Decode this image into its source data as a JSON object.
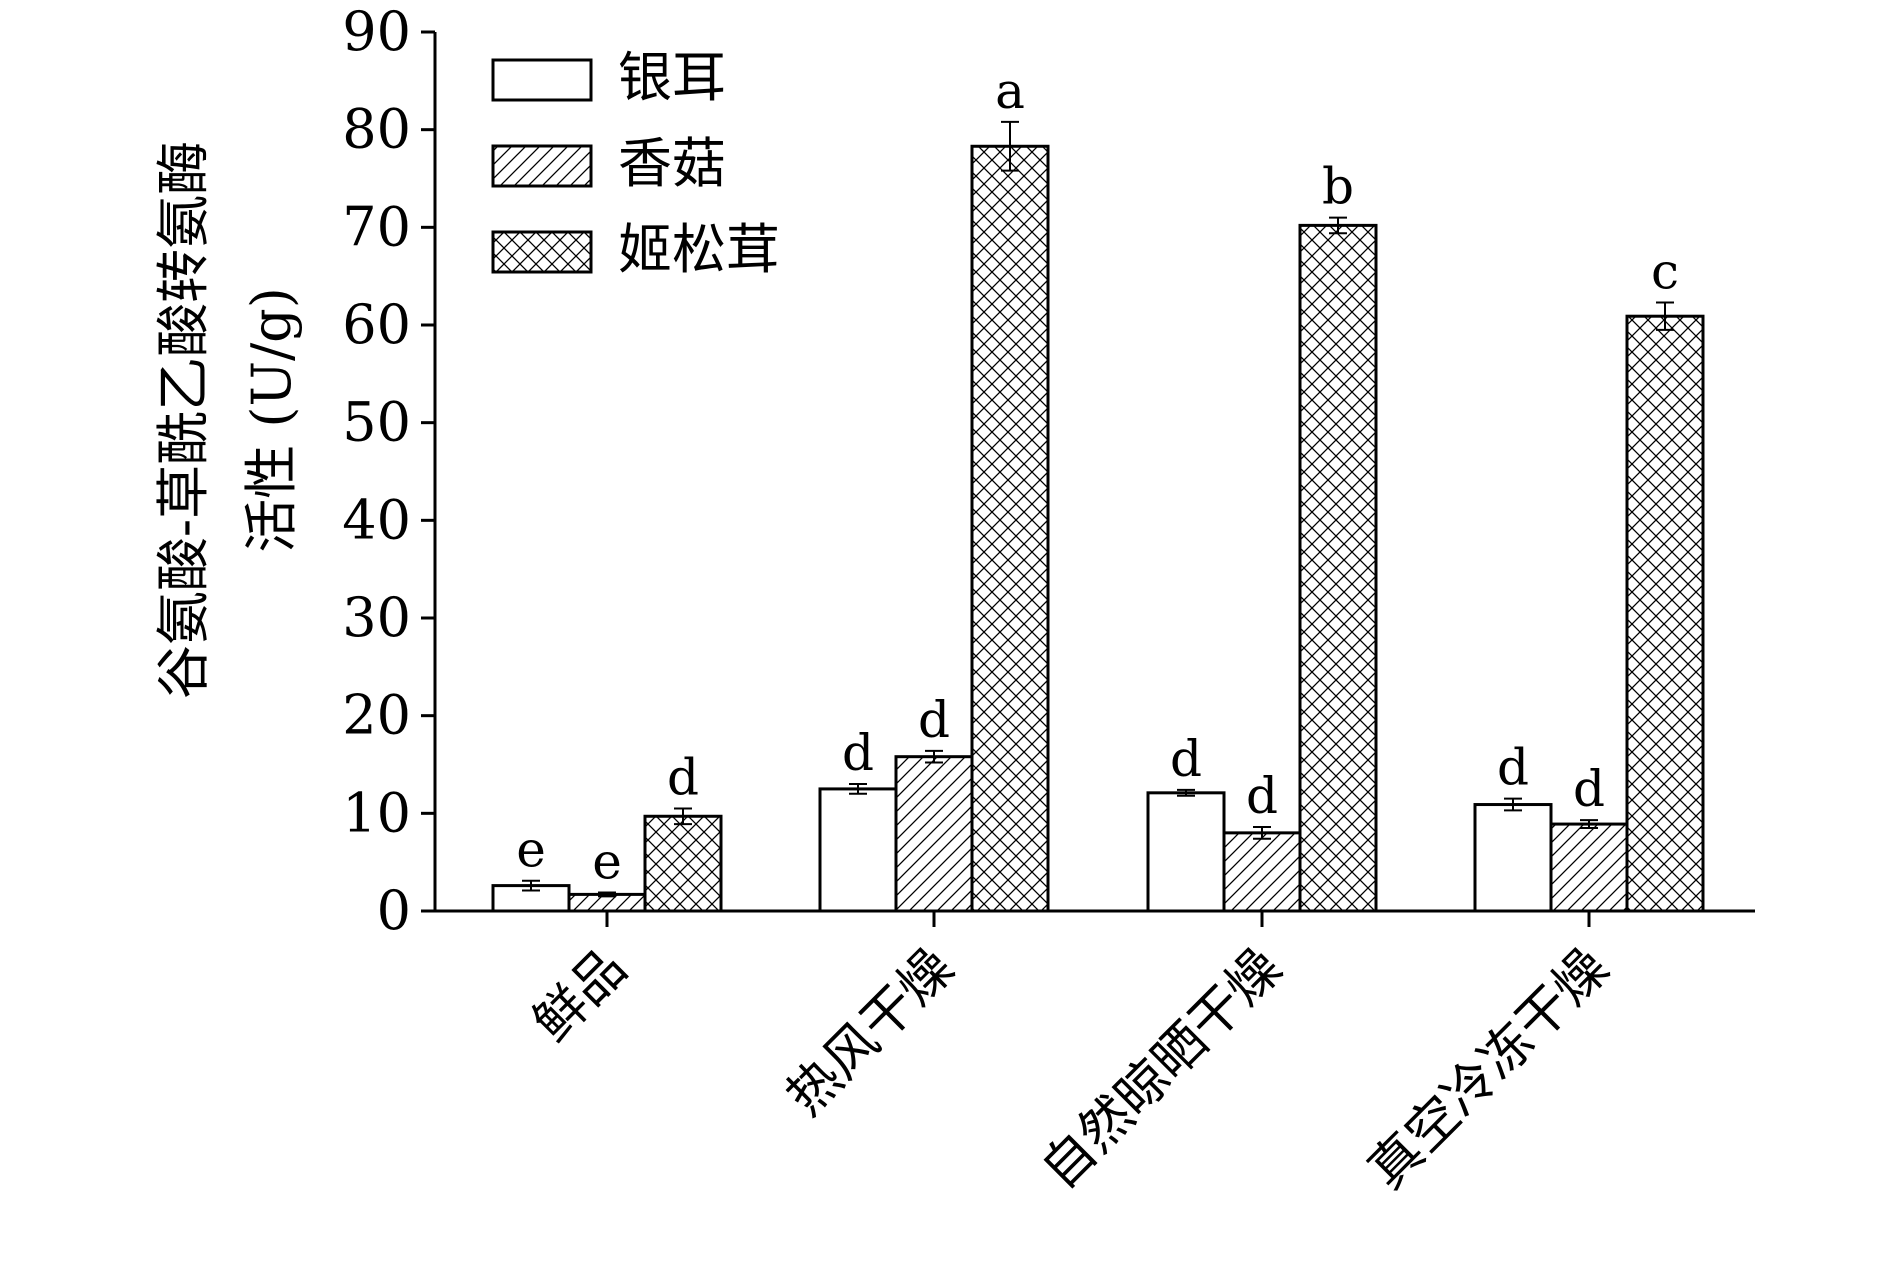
{
  "chart_data": {
    "type": "bar",
    "ylabel_line1": "谷氨酸-草酰乙酸转氨酶",
    "ylabel_line2": "活性 (U/g)",
    "xlabel": "",
    "ylim": [
      0,
      90
    ],
    "yticks": [
      0,
      10,
      20,
      30,
      40,
      50,
      60,
      70,
      80,
      90
    ],
    "categories": [
      "鲜品",
      "热风干燥",
      "自然晾晒干燥",
      "真空冷冻干燥"
    ],
    "legend_position": "top-left",
    "grid": false,
    "series": [
      {
        "name": "银耳",
        "pattern": "none",
        "values": [
          2.6,
          12.5,
          12.1,
          10.9
        ],
        "errors": [
          0.5,
          0.5,
          0.3,
          0.6
        ],
        "labels": [
          "e",
          "d",
          "d",
          "d"
        ]
      },
      {
        "name": "香菇",
        "pattern": "diagonal-hatch",
        "values": [
          1.7,
          15.8,
          8.0,
          8.9
        ],
        "errors": [
          0.2,
          0.6,
          0.6,
          0.4
        ],
        "labels": [
          "e",
          "d",
          "d",
          "d"
        ]
      },
      {
        "name": "姬松茸",
        "pattern": "cross-hatch",
        "values": [
          9.7,
          78.3,
          70.2,
          60.9
        ],
        "errors": [
          0.8,
          2.5,
          0.8,
          1.4
        ],
        "labels": [
          "d",
          "a",
          "b",
          "c"
        ]
      }
    ],
    "colors": {
      "stroke": "#000000",
      "fill": "#ffffff",
      "background": "#ffffff"
    }
  }
}
